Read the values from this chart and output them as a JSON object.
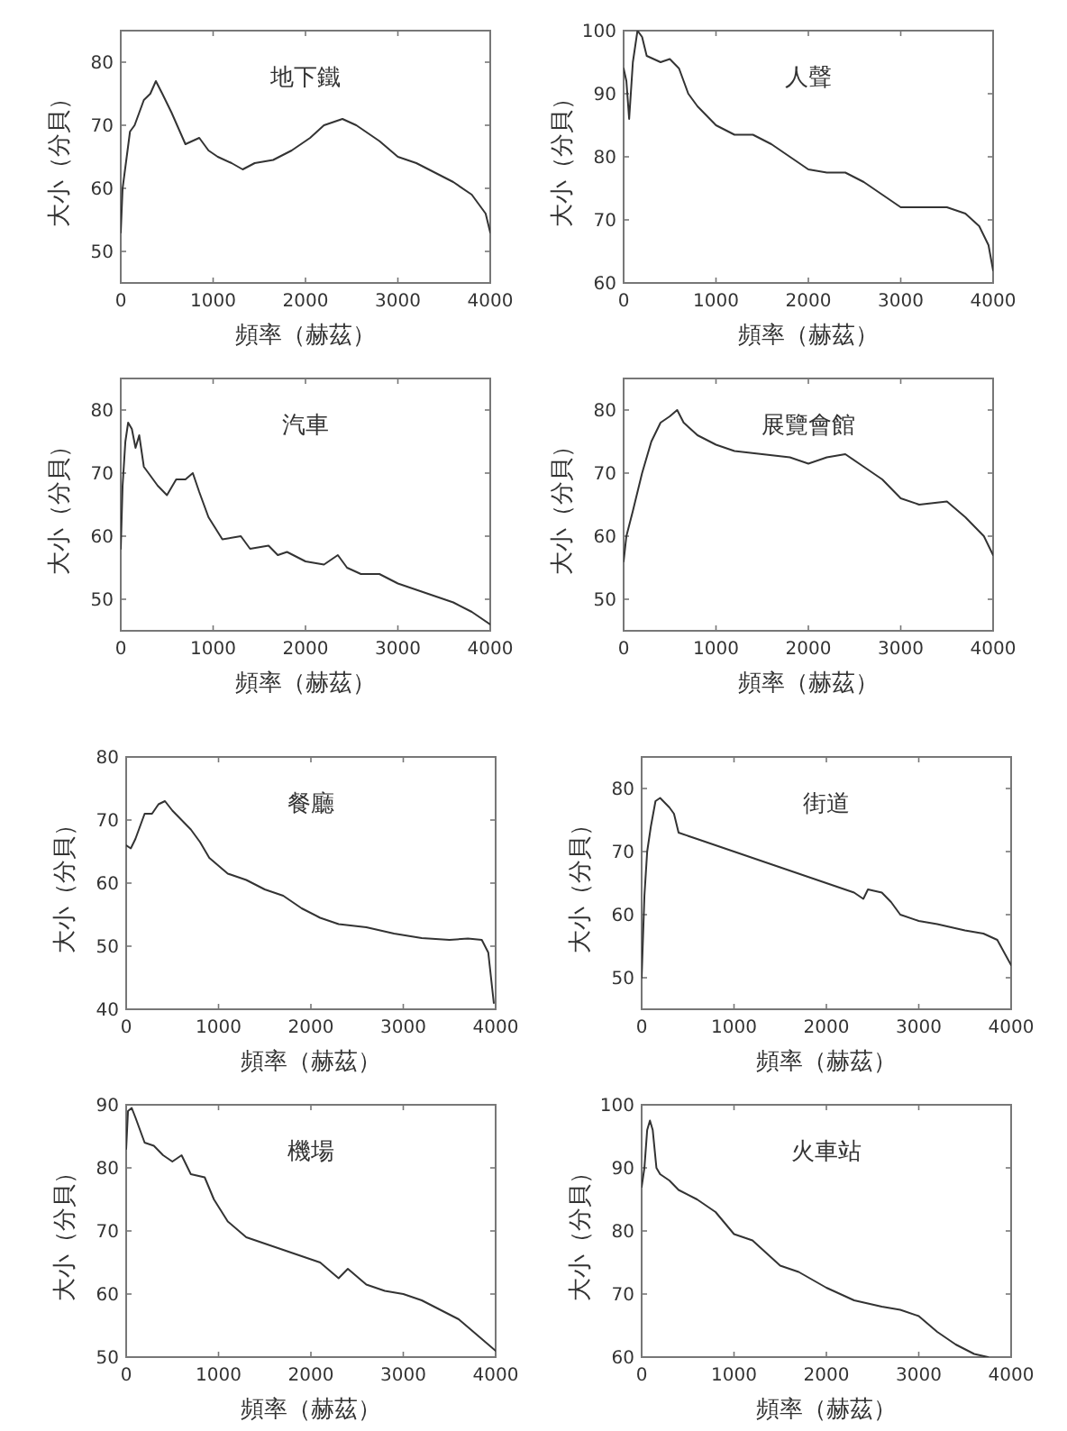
{
  "chart_data": [
    {
      "type": "line",
      "title": "地下鐵",
      "xlabel": "頻率（赫茲）",
      "ylabel": "大小（分貝）",
      "xlim": [
        0,
        4000
      ],
      "xticks": [
        0,
        1000,
        2000,
        3000,
        4000
      ],
      "ylim": [
        45,
        85
      ],
      "yticks": [
        50,
        60,
        70,
        80
      ],
      "grid": false,
      "series": [
        {
          "color": "#333333",
          "x": [
            0,
            20,
            100,
            150,
            250,
            320,
            380,
            450,
            550,
            700,
            850,
            950,
            1050,
            1200,
            1320,
            1450,
            1650,
            1850,
            2050,
            2200,
            2400,
            2550,
            2800,
            3000,
            3200,
            3400,
            3600,
            3800,
            3950,
            4000
          ],
          "values": [
            53,
            60,
            69,
            70,
            74,
            75,
            77,
            75,
            72,
            67,
            68,
            66,
            65,
            64,
            63,
            64,
            64.5,
            66,
            68,
            70,
            71,
            70,
            67.5,
            65,
            64,
            62.5,
            61,
            59,
            56,
            53
          ]
        }
      ]
    },
    {
      "type": "line",
      "title": "人聲",
      "xlabel": "頻率（赫茲）",
      "ylabel": "大小（分貝）",
      "xlim": [
        0,
        4000
      ],
      "xticks": [
        0,
        1000,
        2000,
        3000,
        4000
      ],
      "ylim": [
        60,
        100
      ],
      "yticks": [
        60,
        70,
        80,
        90,
        100
      ],
      "grid": false,
      "series": [
        {
          "color": "#333333",
          "x": [
            0,
            30,
            60,
            100,
            150,
            200,
            250,
            400,
            500,
            600,
            700,
            800,
            1000,
            1200,
            1400,
            1600,
            1800,
            2000,
            2200,
            2400,
            2600,
            2800,
            3000,
            3200,
            3500,
            3700,
            3850,
            3950,
            4000
          ],
          "values": [
            94,
            92,
            86,
            95,
            100,
            99,
            96,
            95,
            95.5,
            94,
            90,
            88,
            85,
            83.5,
            83.5,
            82,
            80,
            78,
            77.5,
            77.5,
            76,
            74,
            72,
            72,
            72,
            71,
            69,
            66,
            62
          ]
        }
      ]
    },
    {
      "type": "line",
      "title": "汽車",
      "xlabel": "頻率（赫茲）",
      "ylabel": "大小（分貝）",
      "xlim": [
        0,
        4000
      ],
      "xticks": [
        0,
        1000,
        2000,
        3000,
        4000
      ],
      "ylim": [
        45,
        85
      ],
      "yticks": [
        50,
        60,
        70,
        80
      ],
      "grid": false,
      "series": [
        {
          "color": "#333333",
          "x": [
            0,
            20,
            50,
            80,
            120,
            160,
            200,
            250,
            300,
            400,
            500,
            600,
            700,
            780,
            850,
            950,
            1100,
            1300,
            1400,
            1600,
            1700,
            1800,
            2000,
            2200,
            2350,
            2450,
            2600,
            2800,
            3000,
            3200,
            3400,
            3600,
            3800,
            4000
          ],
          "values": [
            58,
            68,
            75,
            78,
            77,
            74,
            76,
            71,
            70,
            68,
            66.5,
            69,
            69,
            70,
            67,
            63,
            59.5,
            60,
            58,
            58.5,
            57,
            57.5,
            56,
            55.5,
            57,
            55,
            54,
            54,
            52.5,
            51.5,
            50.5,
            49.5,
            48,
            46
          ]
        }
      ]
    },
    {
      "type": "line",
      "title": "展覽會館",
      "xlabel": "頻率（赫茲）",
      "ylabel": "大小（分貝）",
      "xlim": [
        0,
        4000
      ],
      "xticks": [
        0,
        1000,
        2000,
        3000,
        4000
      ],
      "ylim": [
        45,
        85
      ],
      "yticks": [
        50,
        60,
        70,
        80
      ],
      "grid": false,
      "series": [
        {
          "color": "#333333",
          "x": [
            0,
            30,
            100,
            200,
            300,
            400,
            500,
            580,
            650,
            800,
            1000,
            1200,
            1500,
            1800,
            2000,
            2200,
            2400,
            2600,
            2800,
            3000,
            3200,
            3500,
            3700,
            3900,
            4000
          ],
          "values": [
            56,
            60,
            64,
            70,
            75,
            78,
            79,
            80,
            78,
            76,
            74.5,
            73.5,
            73,
            72.5,
            71.5,
            72.5,
            73,
            71,
            69,
            66,
            65,
            65.5,
            63,
            60,
            57
          ]
        }
      ]
    },
    {
      "type": "line",
      "title": "餐廳",
      "xlabel": "頻率（赫茲）",
      "ylabel": "大小（分貝）",
      "xlim": [
        0,
        4000
      ],
      "xticks": [
        0,
        1000,
        2000,
        3000,
        4000
      ],
      "ylim": [
        40,
        80
      ],
      "yticks": [
        40,
        50,
        60,
        70,
        80
      ],
      "grid": false,
      "series": [
        {
          "color": "#333333",
          "x": [
            0,
            50,
            100,
            200,
            280,
            350,
            420,
            500,
            700,
            800,
            900,
            1100,
            1300,
            1500,
            1700,
            1900,
            2100,
            2300,
            2600,
            2900,
            3200,
            3500,
            3700,
            3850,
            3920,
            3980
          ],
          "values": [
            66,
            65.5,
            67,
            71,
            71,
            72.5,
            73,
            71.5,
            68.5,
            66.5,
            64,
            61.5,
            60.5,
            59,
            58,
            56,
            54.5,
            53.5,
            53,
            52,
            51.3,
            51,
            51.2,
            51,
            49,
            41
          ]
        }
      ]
    },
    {
      "type": "line",
      "title": "街道",
      "xlabel": "頻率（赫茲）",
      "ylabel": "大小（分貝）",
      "xlim": [
        0,
        4000
      ],
      "xticks": [
        0,
        1000,
        2000,
        3000,
        4000
      ],
      "ylim": [
        45,
        85
      ],
      "yticks": [
        50,
        60,
        70,
        80
      ],
      "grid": false,
      "series": [
        {
          "color": "#333333",
          "x": [
            0,
            30,
            60,
            100,
            150,
            200,
            300,
            350,
            400,
            600,
            800,
            1000,
            1200,
            1500,
            1800,
            2000,
            2200,
            2300,
            2400,
            2450,
            2600,
            2700,
            2800,
            3000,
            3200,
            3500,
            3700,
            3850,
            4000
          ],
          "values": [
            50,
            63,
            70,
            74,
            78,
            78.5,
            77,
            76,
            73,
            72,
            71,
            70,
            69,
            67.5,
            66,
            65,
            64,
            63.5,
            62.5,
            64,
            63.5,
            62,
            60,
            59,
            58.5,
            57.5,
            57,
            56,
            52
          ]
        }
      ]
    },
    {
      "type": "line",
      "title": "機場",
      "xlabel": "頻率（赫茲）",
      "ylabel": "大小（分貝）",
      "xlim": [
        0,
        4000
      ],
      "xticks": [
        0,
        1000,
        2000,
        3000,
        4000
      ],
      "ylim": [
        50,
        90
      ],
      "yticks": [
        50,
        60,
        70,
        80,
        90
      ],
      "grid": false,
      "series": [
        {
          "color": "#333333",
          "x": [
            0,
            20,
            60,
            100,
            200,
            300,
            400,
            500,
            600,
            700,
            850,
            950,
            1100,
            1300,
            1500,
            1700,
            1900,
            2100,
            2300,
            2400,
            2600,
            2800,
            3000,
            3200,
            3400,
            3600,
            3800,
            4000
          ],
          "values": [
            83,
            89,
            89.5,
            88,
            84,
            83.5,
            82,
            81,
            82,
            79,
            78.5,
            75,
            71.5,
            69,
            68,
            67,
            66,
            65,
            62.5,
            64,
            61.5,
            60.5,
            60,
            59,
            57.5,
            56,
            53.5,
            51
          ]
        }
      ]
    },
    {
      "type": "line",
      "title": "火車站",
      "xlabel": "頻率（赫茲）",
      "ylabel": "大小（分貝）",
      "xlim": [
        0,
        4000
      ],
      "xticks": [
        0,
        1000,
        2000,
        3000,
        4000
      ],
      "ylim": [
        60,
        100
      ],
      "yticks": [
        60,
        70,
        80,
        90,
        100
      ],
      "grid": false,
      "series": [
        {
          "color": "#333333",
          "x": [
            0,
            30,
            60,
            90,
            120,
            160,
            200,
            300,
            400,
            600,
            800,
            1000,
            1200,
            1500,
            1700,
            2000,
            2300,
            2600,
            2800,
            3000,
            3200,
            3400,
            3600,
            3750
          ],
          "values": [
            87,
            90,
            96,
            97.5,
            96,
            90,
            89,
            88,
            86.5,
            85,
            83,
            79.5,
            78.5,
            74.5,
            73.5,
            71,
            69,
            68,
            67.5,
            66.5,
            64,
            62,
            60.5,
            60
          ]
        }
      ]
    }
  ]
}
